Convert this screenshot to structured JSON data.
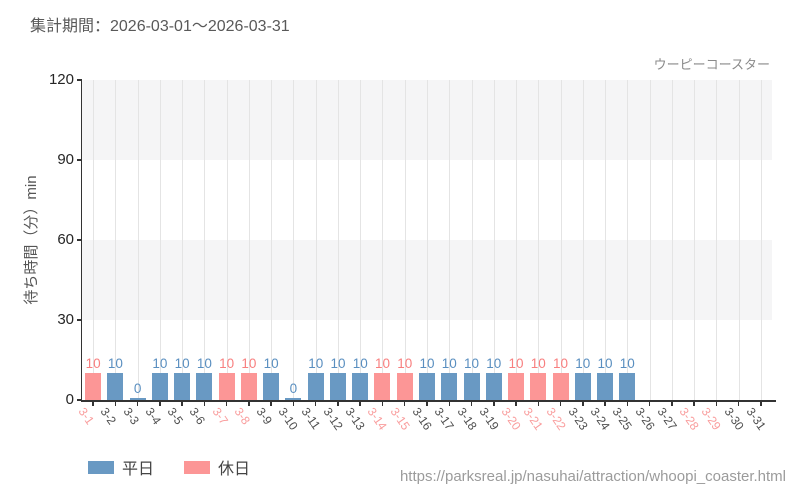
{
  "header": {
    "title": "集計期間：2026-03-01～2026-03-31"
  },
  "chart": {
    "attraction_label": "ウーピーコースター",
    "y_axis_title": "待ち時間（分）min",
    "legend": [
      {
        "label": "平日",
        "color": "#6999c3"
      },
      {
        "label": "休日",
        "color": "#fc9696"
      }
    ]
  },
  "chart_data": {
    "type": "bar",
    "title": "集計期間：2026-03-01～2026-03-31",
    "xlabel": "",
    "ylabel": "待ち時間（分）min",
    "ylim": [
      0,
      120
    ],
    "yticks": [
      0,
      30,
      60,
      90,
      120
    ],
    "grid": "alternating horizontal gray bands + vertical gridlines per category",
    "legend_position": "bottom-left",
    "legend": [
      "平日",
      "休日"
    ],
    "categories": [
      "3-1",
      "3-2",
      "3-3",
      "3-4",
      "3-5",
      "3-6",
      "3-7",
      "3-8",
      "3-9",
      "3-10",
      "3-11",
      "3-12",
      "3-13",
      "3-14",
      "3-15",
      "3-16",
      "3-17",
      "3-18",
      "3-19",
      "3-20",
      "3-21",
      "3-22",
      "3-23",
      "3-24",
      "3-25",
      "3-26",
      "3-27",
      "3-28",
      "3-29",
      "3-30",
      "3-31"
    ],
    "values": [
      10,
      10,
      0,
      10,
      10,
      10,
      10,
      10,
      10,
      0,
      10,
      10,
      10,
      10,
      10,
      10,
      10,
      10,
      10,
      10,
      10,
      10,
      10,
      10,
      10,
      null,
      null,
      null,
      null,
      null,
      null
    ],
    "day_types": [
      "holiday",
      "weekday",
      "weekday",
      "weekday",
      "weekday",
      "weekday",
      "holiday",
      "holiday",
      "weekday",
      "weekday",
      "weekday",
      "weekday",
      "weekday",
      "holiday",
      "holiday",
      "weekday",
      "weekday",
      "weekday",
      "weekday",
      "holiday",
      "holiday",
      "holiday",
      "weekday",
      "weekday",
      "weekday",
      "weekday",
      "weekday",
      "holiday",
      "holiday",
      "weekday",
      "weekday"
    ]
  },
  "colors": {
    "weekday_bar": "#6999c3",
    "holiday_bar": "#fc9696",
    "weekday_value_label": "#5a8fc0",
    "holiday_value_label": "#f87f7f",
    "weekday_tick_label": "#4d4d4d",
    "holiday_tick_label": "#f99c9c",
    "band_gray": "#f5f5f6",
    "band_white": "#ffffff",
    "gridline": "#e4e4e4",
    "axis": "#333333"
  },
  "footer": {
    "url": "https://parksreal.jp/nasuhai/attraction/whoopi_coaster.html"
  }
}
